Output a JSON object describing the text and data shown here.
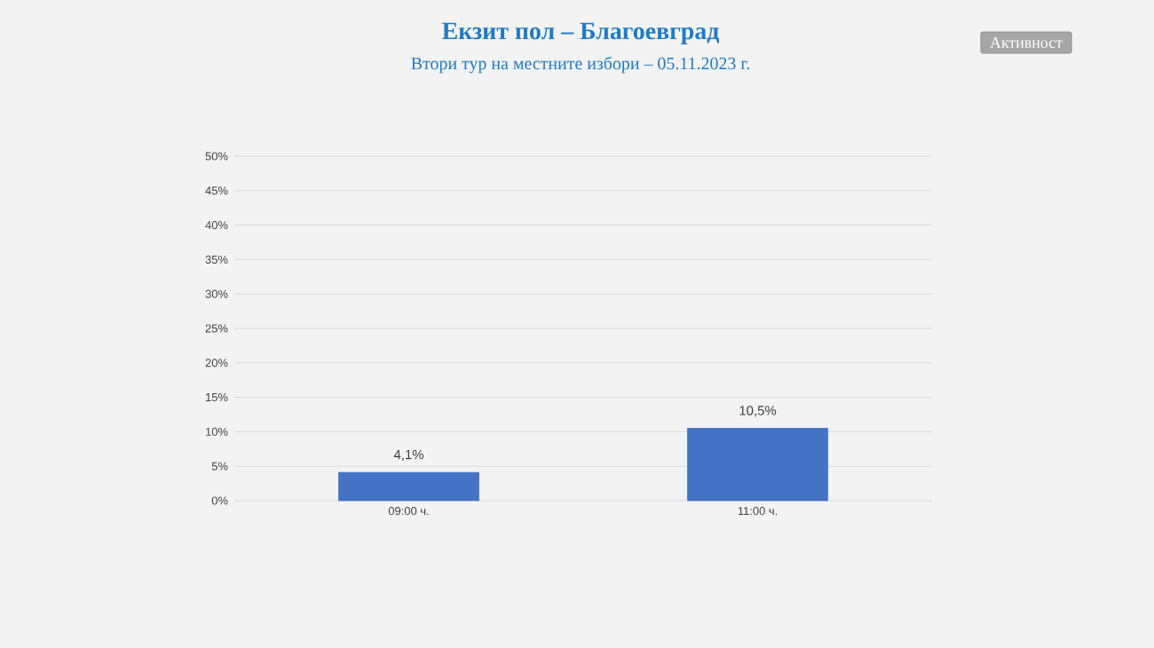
{
  "chart_data": {
    "type": "bar",
    "title": "Екзит пол – Благоевград",
    "subtitle": "Втори тур на местните избори – 05.11.2023  г.",
    "annotations": [
      "Активност"
    ],
    "categories": [
      "09:00 ч.",
      "11:00 ч."
    ],
    "values": [
      4.1,
      10.5
    ],
    "value_labels": [
      "4,1%",
      "10,5%"
    ],
    "color": "#4472c4",
    "ylim": [
      0,
      50
    ],
    "yticks": [
      {
        "value": 0,
        "label": "0%"
      },
      {
        "value": 5,
        "label": "5%"
      },
      {
        "value": 10,
        "label": "10%"
      },
      {
        "value": 15,
        "label": "15%"
      },
      {
        "value": 20,
        "label": "20%"
      },
      {
        "value": 25,
        "label": "25%"
      },
      {
        "value": 30,
        "label": "30%"
      },
      {
        "value": 35,
        "label": "35%"
      },
      {
        "value": 40,
        "label": "40%"
      },
      {
        "value": 45,
        "label": "45%"
      },
      {
        "value": 50,
        "label": "50%"
      }
    ],
    "grid": "y"
  }
}
